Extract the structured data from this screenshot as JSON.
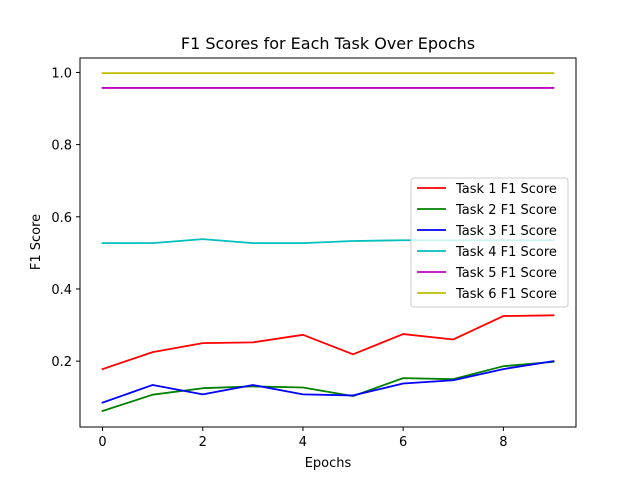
{
  "chart_data": {
    "type": "line",
    "title": "F1 Scores for Each Task Over Epochs",
    "xlabel": "Epochs",
    "ylabel": "F1 Score",
    "xlim": [
      -0.45,
      9.45
    ],
    "ylim": [
      0.0175,
      1.04
    ],
    "x_ticks": [
      0,
      2,
      4,
      6,
      8
    ],
    "y_ticks": [
      0.2,
      0.4,
      0.6,
      0.8,
      1.0
    ],
    "x_tick_labels": [
      "0",
      "2",
      "4",
      "6",
      "8"
    ],
    "y_tick_labels": [
      "0.2",
      "0.4",
      "0.6",
      "0.8",
      "1.0"
    ],
    "grid": false,
    "legend_position": "center-right",
    "x": [
      0,
      1,
      2,
      3,
      4,
      5,
      6,
      7,
      8,
      9
    ],
    "series": [
      {
        "name": "Task 1 F1 Score",
        "color": "#ff0000",
        "values": [
          0.178,
          0.225,
          0.25,
          0.252,
          0.273,
          0.219,
          0.275,
          0.26,
          0.325,
          0.327
        ]
      },
      {
        "name": "Task 2 F1 Score",
        "color": "#008000",
        "values": [
          0.062,
          0.107,
          0.125,
          0.13,
          0.127,
          0.103,
          0.153,
          0.15,
          0.186,
          0.198
        ]
      },
      {
        "name": "Task 3 F1 Score",
        "color": "#0000ff",
        "values": [
          0.085,
          0.134,
          0.108,
          0.134,
          0.108,
          0.105,
          0.138,
          0.147,
          0.178,
          0.2
        ]
      },
      {
        "name": "Task 4 F1 Score",
        "color": "#00bfbf",
        "values": [
          0.527,
          0.527,
          0.538,
          0.527,
          0.527,
          0.533,
          0.535,
          0.535,
          0.535,
          0.535
        ]
      },
      {
        "name": "Task 5 F1 Score",
        "color": "#bf00bf",
        "values": [
          0.957,
          0.957,
          0.957,
          0.957,
          0.957,
          0.957,
          0.957,
          0.957,
          0.957,
          0.957
        ]
      },
      {
        "name": "Task 6 F1 Score",
        "color": "#bfbf00",
        "values": [
          0.998,
          0.998,
          0.998,
          0.998,
          0.998,
          0.998,
          0.998,
          0.998,
          0.998,
          0.998
        ]
      }
    ]
  }
}
